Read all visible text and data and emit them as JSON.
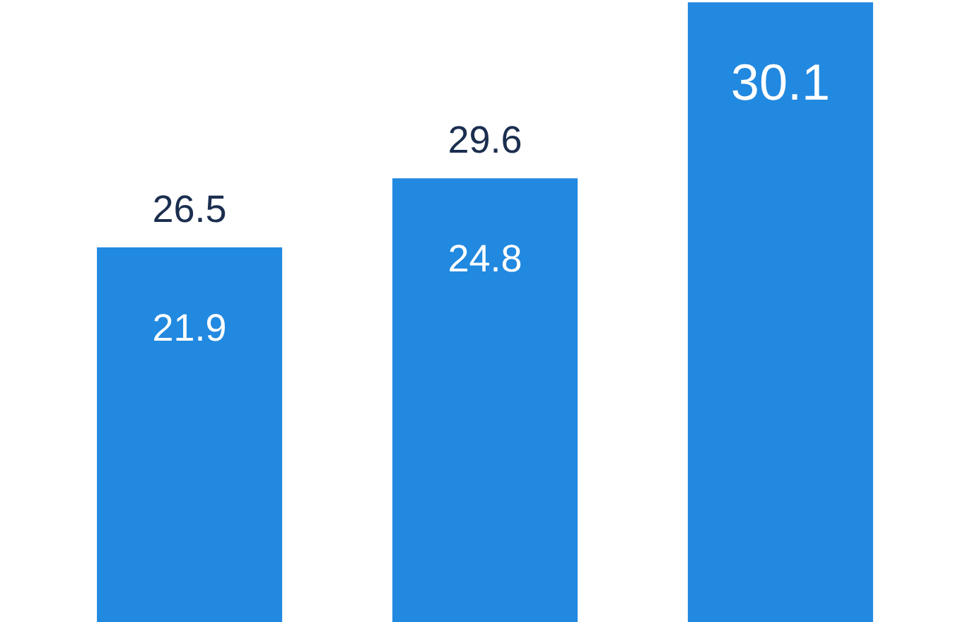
{
  "chart_data": {
    "type": "bar",
    "ylim": [
      9.7,
      37.6
    ],
    "categories": [
      null,
      null,
      null
    ],
    "series": [
      {
        "color": "#2289e0",
        "values": [
          26.5,
          29.6,
          37.5
        ],
        "value_labels": [
          "26.5",
          "29.6",
          null
        ]
      }
    ],
    "annotations": [
      "21.9",
      "24.8",
      "30.1"
    ]
  }
}
